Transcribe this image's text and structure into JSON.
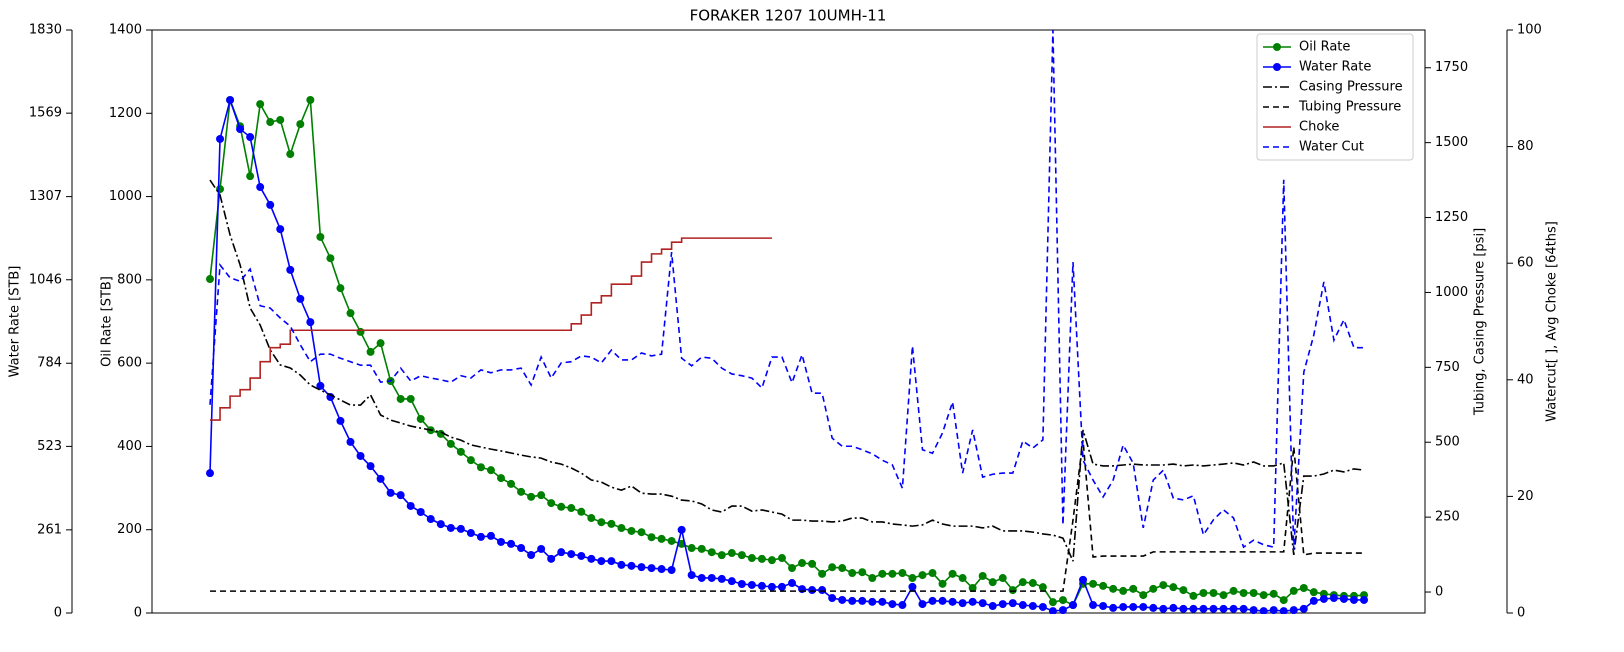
{
  "chart_data": {
    "type": "line",
    "title": "FORAKER 1207 10UMH-11",
    "legend": "upper right",
    "axes": [
      {
        "label": "Oil Rate [STB]",
        "side": "left",
        "ylim": [
          0,
          1400
        ],
        "yticks": [
          0,
          200,
          400,
          600,
          800,
          1000,
          1200,
          1400
        ]
      },
      {
        "label": "Water Rate [STB]",
        "side": "far-left",
        "ylim": [
          0,
          1830
        ],
        "yticks": [
          0,
          261,
          523,
          784,
          1046,
          1307,
          1569,
          1830
        ]
      },
      {
        "label": "Tubing, Casing Pressure [psi]",
        "side": "right",
        "ylim": [
          -70,
          1876
        ],
        "yticks": [
          0,
          250,
          500,
          750,
          1000,
          1250,
          1500,
          1750
        ]
      },
      {
        "label": "Watercut[ ], Avg Choke [64ths]",
        "side": "far-right",
        "ylim": [
          0,
          100
        ],
        "yticks": [
          0,
          20,
          40,
          60,
          80,
          100
        ]
      }
    ],
    "series": [
      {
        "name": "Oil Rate",
        "color": "#008000",
        "axis": 0,
        "line_style": "solid",
        "marker": "o",
        "values": [
          802,
          1018,
          1232,
          1169,
          1049,
          1222,
          1179,
          1184,
          1102,
          1174,
          1232,
          903,
          852,
          780,
          720,
          675,
          627,
          648,
          557,
          514,
          514,
          466,
          439,
          430,
          406,
          387,
          367,
          350,
          343,
          324,
          310,
          291,
          279,
          283,
          264,
          255,
          252,
          243,
          228,
          218,
          214,
          204,
          197,
          194,
          182,
          178,
          173,
          166,
          156,
          154,
          146,
          139,
          144,
          139,
          132,
          130,
          127,
          132,
          108,
          120,
          118,
          94,
          110,
          108,
          96,
          98,
          84,
          94,
          94,
          96,
          84,
          91,
          96,
          70,
          94,
          84,
          60,
          89,
          74,
          84,
          55,
          74,
          72,
          62,
          26,
          31,
          19,
          70,
          70,
          65,
          58,
          53,
          58,
          43,
          58,
          67,
          62,
          55,
          41,
          48,
          48,
          43,
          53,
          48,
          48,
          43,
          46,
          31,
          53,
          60,
          50,
          46,
          43,
          41,
          41,
          43
        ]
      },
      {
        "name": "Water Rate",
        "color": "#0000ff",
        "axis": 1,
        "line_style": "solid",
        "marker": "o",
        "values": [
          439,
          1488,
          1610,
          1519,
          1494,
          1337,
          1281,
          1205,
          1077,
          986,
          913,
          713,
          678,
          603,
          537,
          493,
          461,
          421,
          377,
          370,
          336,
          317,
          295,
          279,
          267,
          264,
          251,
          239,
          242,
          223,
          217,
          204,
          182,
          201,
          170,
          191,
          185,
          179,
          170,
          163,
          163,
          151,
          148,
          144,
          141,
          138,
          135,
          261,
          119,
          110,
          110,
          107,
          100,
          91,
          88,
          85,
          82,
          82,
          94,
          75,
          72,
          72,
          47,
          41,
          38,
          38,
          35,
          35,
          28,
          25,
          82,
          28,
          38,
          38,
          35,
          31,
          35,
          31,
          22,
          28,
          31,
          25,
          22,
          19,
          6,
          9,
          25,
          104,
          25,
          22,
          16,
          19,
          19,
          19,
          16,
          13,
          16,
          13,
          13,
          13,
          13,
          13,
          13,
          13,
          9,
          6,
          9,
          6,
          9,
          13,
          38,
          44,
          47,
          44,
          41,
          41
        ]
      },
      {
        "name": "Casing Pressure",
        "color": "#000000",
        "axis": 2,
        "line_style": "dashdot",
        "values": [
          1375,
          1325,
          1192,
          1092,
          948,
          891,
          808,
          758,
          748,
          724,
          691,
          674,
          658,
          641,
          624,
          624,
          658,
          591,
          574,
          564,
          554,
          547,
          541,
          534,
          517,
          507,
          491,
          484,
          477,
          471,
          464,
          457,
          451,
          447,
          434,
          427,
          414,
          397,
          374,
          367,
          350,
          340,
          354,
          330,
          327,
          327,
          320,
          307,
          304,
          294,
          274,
          267,
          287,
          287,
          270,
          274,
          267,
          260,
          240,
          240,
          237,
          237,
          234,
          237,
          247,
          247,
          234,
          234,
          227,
          224,
          220,
          224,
          240,
          227,
          220,
          220,
          220,
          214,
          220,
          204,
          204,
          204,
          200,
          194,
          190,
          180,
          103,
          541,
          427,
          421,
          421,
          424,
          427,
          424,
          424,
          424,
          427,
          421,
          424,
          421,
          424,
          427,
          431,
          424,
          434,
          421,
          421,
          431,
          124,
          387,
          387,
          394,
          407,
          401,
          411,
          407
        ]
      },
      {
        "name": "Tubing Pressure",
        "color": "#000000",
        "axis": 2,
        "line_style": "dashed",
        "values": [
          3,
          3,
          3,
          3,
          3,
          3,
          3,
          3,
          3,
          3,
          3,
          3,
          3,
          3,
          3,
          3,
          3,
          3,
          3,
          3,
          3,
          3,
          3,
          3,
          3,
          3,
          3,
          3,
          3,
          3,
          3,
          3,
          3,
          3,
          3,
          3,
          3,
          3,
          3,
          3,
          3,
          3,
          3,
          3,
          3,
          3,
          3,
          3,
          3,
          3,
          3,
          3,
          3,
          3,
          3,
          3,
          3,
          3,
          3,
          3,
          3,
          3,
          3,
          3,
          3,
          3,
          3,
          3,
          3,
          3,
          3,
          3,
          3,
          3,
          3,
          3,
          3,
          3,
          3,
          3,
          3,
          3,
          3,
          3,
          3,
          3,
          240,
          507,
          117,
          120,
          120,
          120,
          120,
          120,
          134,
          134,
          134,
          134,
          134,
          134,
          134,
          134,
          134,
          134,
          134,
          134,
          134,
          134,
          484,
          124,
          130,
          130,
          130,
          130,
          130,
          130
        ]
      },
      {
        "name": "Choke",
        "color": "#b22222",
        "axis": 3,
        "line_style": "solid",
        "step": true,
        "values": [
          33.1,
          35.2,
          37.2,
          38.3,
          40.3,
          43.1,
          45.5,
          46.1,
          48.5,
          48.5,
          48.5,
          48.5,
          48.5,
          48.5,
          48.5,
          48.5,
          48.5,
          48.5,
          48.5,
          48.5,
          48.5,
          48.5,
          48.5,
          48.5,
          48.5,
          48.5,
          48.5,
          48.5,
          48.5,
          48.5,
          48.5,
          48.5,
          48.5,
          48.5,
          48.5,
          48.5,
          49.6,
          51.1,
          53.2,
          54.4,
          56.4,
          56.4,
          57.8,
          60.2,
          61.6,
          62.4,
          63.6,
          64.3,
          64.3,
          64.3,
          64.3,
          64.3,
          64.3,
          64.3,
          64.3,
          64.3,
          64.3,
          null,
          null,
          null,
          null,
          null,
          null,
          null,
          null,
          null,
          null,
          null,
          null,
          null,
          null,
          null,
          null,
          null,
          null,
          null,
          null,
          null,
          null,
          null,
          null,
          null,
          null,
          null,
          null,
          null,
          null,
          null,
          null,
          null,
          null,
          null,
          null,
          null,
          null,
          null,
          null,
          null,
          null,
          null,
          null,
          null,
          null,
          null,
          null,
          null,
          null,
          null,
          null,
          null,
          null,
          null,
          null,
          null,
          null,
          null,
          null
        ]
      },
      {
        "name": "Water Cut",
        "color": "#0000ff",
        "axis": 3,
        "line_style": "dashed",
        "values": [
          35.7,
          59.7,
          57.5,
          56.9,
          59.0,
          52.7,
          52.3,
          50.6,
          49.2,
          46.0,
          43.1,
          44.4,
          44.4,
          43.7,
          43.1,
          42.5,
          42.5,
          39.6,
          39.8,
          42.0,
          39.8,
          40.7,
          40.3,
          40.0,
          39.6,
          40.7,
          40.3,
          41.7,
          41.2,
          41.7,
          41.7,
          42.0,
          39.1,
          43.9,
          40.3,
          42.9,
          43.1,
          44.1,
          43.9,
          42.9,
          45.1,
          43.4,
          43.4,
          44.6,
          44.1,
          44.4,
          61.9,
          43.7,
          42.4,
          43.9,
          43.7,
          42.0,
          41.0,
          40.7,
          40.3,
          38.6,
          43.9,
          43.9,
          39.5,
          44.3,
          37.7,
          37.7,
          30.0,
          28.6,
          28.6,
          28.0,
          27.3,
          26.2,
          25.4,
          21.4,
          45.8,
          28.0,
          27.4,
          30.9,
          36.2,
          24.0,
          31.4,
          23.3,
          23.8,
          24.0,
          24.0,
          29.5,
          28.3,
          29.7,
          100,
          15.1,
          60.2,
          26.2,
          22.8,
          19.9,
          22.8,
          28.8,
          25.7,
          14.6,
          22.8,
          24.5,
          19.7,
          19.4,
          20.1,
          13.4,
          16.0,
          17.7,
          16.3,
          11.3,
          12.5,
          11.7,
          11.3,
          74.3,
          10.8,
          41.3,
          47.7,
          56.8,
          46.8,
          50.3,
          45.5,
          45.5
        ]
      }
    ]
  }
}
